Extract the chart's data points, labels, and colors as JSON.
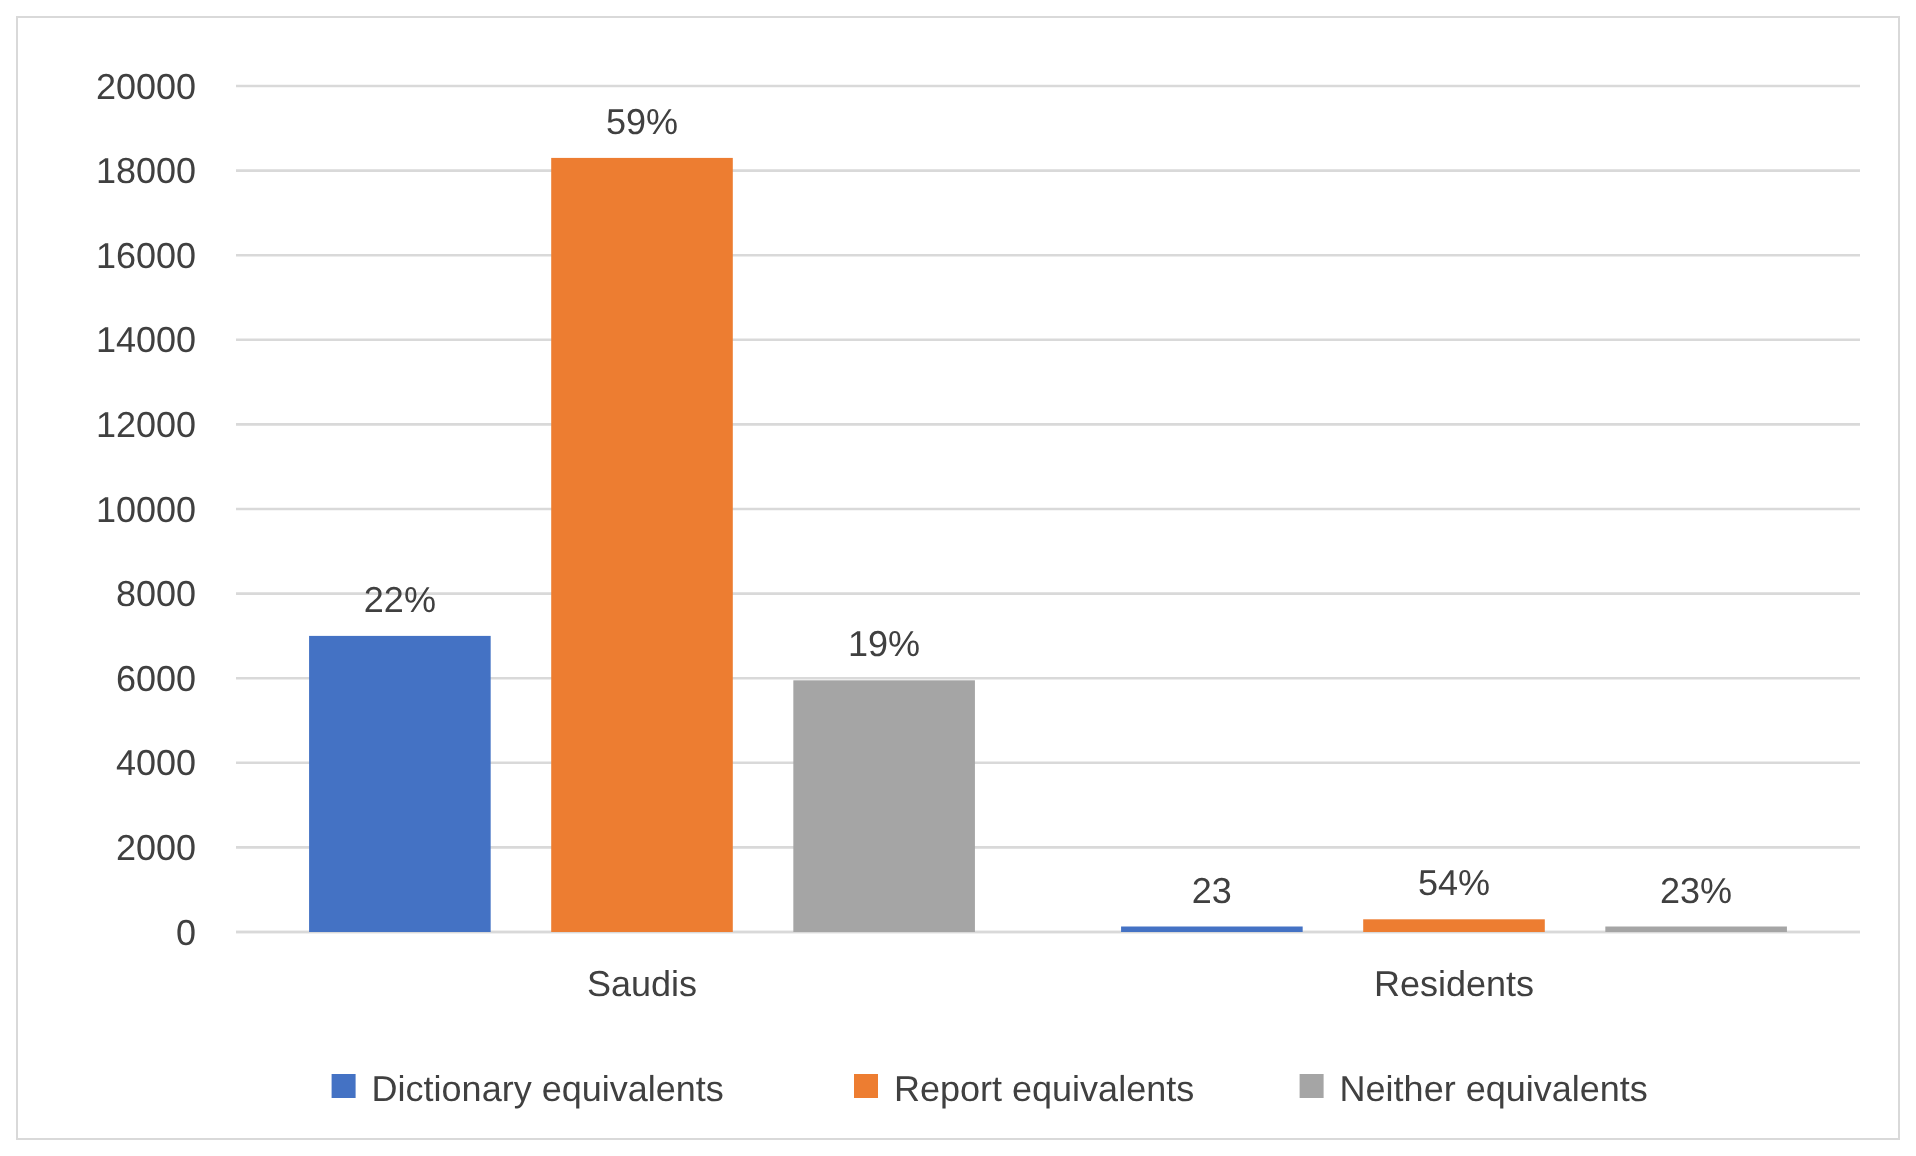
{
  "chart_data": {
    "type": "bar",
    "categories": [
      "Saudis",
      "Residents"
    ],
    "series": [
      {
        "name": "Dictionary equivalents",
        "color": "#4472c4",
        "values": [
          7000,
          130
        ]
      },
      {
        "name": "Report equivalents",
        "color": "#ed7d31",
        "values": [
          18300,
          300
        ]
      },
      {
        "name": "Neither equivalents",
        "color": "#a5a5a5",
        "values": [
          5950,
          130
        ]
      }
    ],
    "annotations": [
      "22%",
      "59%",
      "19%",
      "23",
      "54%",
      "23%"
    ],
    "ylim": [
      0,
      20000
    ],
    "yticks": [
      0,
      2000,
      4000,
      6000,
      8000,
      10000,
      12000,
      14000,
      16000,
      18000,
      20000
    ],
    "grid": "y",
    "legend": "bottom"
  }
}
